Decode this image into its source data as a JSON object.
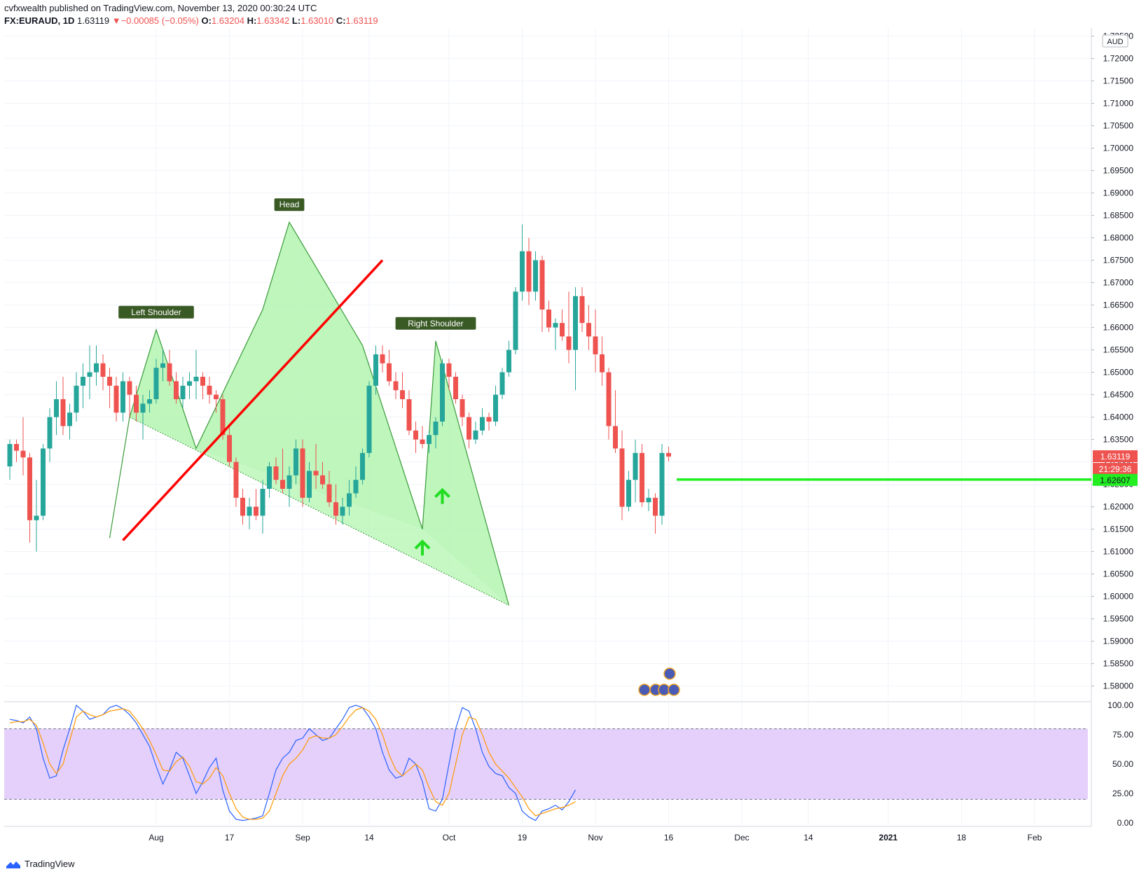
{
  "header": {
    "published_line": "cvfxwealth published on TradingView.com, November 13, 2020 00:30:24 UTC",
    "symbol": "FX:EURAUD, 1D",
    "last": "1.63119",
    "change": "−0.00085 (−0.05%)",
    "o_label": "O:",
    "o": "1.63204",
    "h_label": "H:",
    "h": "1.63342",
    "l_label": "L:",
    "l": "1.63010",
    "c_label": "C:",
    "c": "1.63119"
  },
  "footer": {
    "brand": "TradingView"
  },
  "colors": {
    "up": "#26a69a",
    "down": "#ef5350",
    "pattern_fill": "#b3f5b0",
    "neckline": "#ff0000",
    "target": "#22ee22",
    "stoch_k": "#2962ff",
    "stoch_d": "#ff9800",
    "band": "#e1c8fb"
  },
  "chart_data": [
    {
      "type": "candlestick",
      "title": "",
      "currency": "AUD",
      "x_tick_labels": [
        "Aug",
        "17",
        "Sep",
        "14",
        "Oct",
        "19",
        "Nov",
        "16",
        "Dec",
        "14",
        "2021",
        "18",
        "Feb"
      ],
      "y_tick_labels": [
        "1.72500",
        "1.72000",
        "1.71500",
        "1.71000",
        "1.70500",
        "1.70000",
        "1.69500",
        "1.69000",
        "1.68500",
        "1.68000",
        "1.67500",
        "1.67000",
        "1.66500",
        "1.66000",
        "1.65500",
        "1.65000",
        "1.64500",
        "1.64000",
        "1.63500",
        "1.63000",
        "1.62500",
        "1.62000",
        "1.61500",
        "1.61000",
        "1.60500",
        "1.60000",
        "1.59500",
        "1.59000",
        "1.58500",
        "1.58000"
      ],
      "ylim": [
        1.5765,
        1.7265
      ],
      "price_labels": {
        "last": "1.63119",
        "countdown": "21:29:36",
        "target": "1.62607"
      },
      "ohlc": [
        [
          1.629,
          1.635,
          1.626,
          1.634
        ],
        [
          1.634,
          1.635,
          1.63,
          1.6325
        ],
        [
          1.6325,
          1.64,
          1.627,
          1.631
        ],
        [
          1.631,
          1.632,
          1.612,
          1.617
        ],
        [
          1.617,
          1.626,
          1.61,
          1.618
        ],
        [
          1.618,
          1.634,
          1.617,
          1.633
        ],
        [
          1.633,
          1.642,
          1.63,
          1.64
        ],
        [
          1.64,
          1.648,
          1.636,
          1.644
        ],
        [
          1.644,
          1.649,
          1.636,
          1.638
        ],
        [
          1.638,
          1.643,
          1.635,
          1.641
        ],
        [
          1.641,
          1.65,
          1.639,
          1.647
        ],
        [
          1.647,
          1.652,
          1.642,
          1.649
        ],
        [
          1.649,
          1.656,
          1.644,
          1.65
        ],
        [
          1.65,
          1.656,
          1.647,
          1.652
        ],
        [
          1.652,
          1.654,
          1.646,
          1.649
        ],
        [
          1.649,
          1.651,
          1.642,
          1.647
        ],
        [
          1.647,
          1.649,
          1.639,
          1.641
        ],
        [
          1.641,
          1.65,
          1.639,
          1.648
        ],
        [
          1.648,
          1.649,
          1.64,
          1.645
        ],
        [
          1.645,
          1.647,
          1.639,
          1.641
        ],
        [
          1.641,
          1.645,
          1.635,
          1.643
        ],
        [
          1.643,
          1.646,
          1.641,
          1.644
        ],
        [
          1.644,
          1.653,
          1.643,
          1.651
        ],
        [
          1.651,
          1.655,
          1.648,
          1.652
        ],
        [
          1.652,
          1.655,
          1.647,
          1.648
        ],
        [
          1.648,
          1.65,
          1.643,
          1.644
        ],
        [
          1.644,
          1.649,
          1.642,
          1.647
        ],
        [
          1.647,
          1.65,
          1.644,
          1.648
        ],
        [
          1.648,
          1.655,
          1.644,
          1.649
        ],
        [
          1.649,
          1.65,
          1.644,
          1.647
        ],
        [
          1.647,
          1.649,
          1.643,
          1.645
        ],
        [
          1.645,
          1.646,
          1.641,
          1.644
        ],
        [
          1.644,
          1.645,
          1.635,
          1.636
        ],
        [
          1.636,
          1.638,
          1.629,
          1.63
        ],
        [
          1.63,
          1.631,
          1.62,
          1.622
        ],
        [
          1.622,
          1.624,
          1.616,
          1.618
        ],
        [
          1.618,
          1.622,
          1.615,
          1.62
        ],
        [
          1.62,
          1.624,
          1.617,
          1.618
        ],
        [
          1.618,
          1.626,
          1.614,
          1.624
        ],
        [
          1.624,
          1.63,
          1.622,
          1.629
        ],
        [
          1.629,
          1.631,
          1.625,
          1.626
        ],
        [
          1.626,
          1.633,
          1.623,
          1.624
        ],
        [
          1.624,
          1.629,
          1.62,
          1.627
        ],
        [
          1.627,
          1.635,
          1.625,
          1.633
        ],
        [
          1.633,
          1.635,
          1.62,
          1.622
        ],
        [
          1.622,
          1.63,
          1.621,
          1.628
        ],
        [
          1.628,
          1.634,
          1.624,
          1.627
        ],
        [
          1.627,
          1.63,
          1.624,
          1.625
        ],
        [
          1.625,
          1.628,
          1.62,
          1.621
        ],
        [
          1.621,
          1.625,
          1.616,
          1.618
        ],
        [
          1.618,
          1.622,
          1.616,
          1.62
        ],
        [
          1.62,
          1.626,
          1.618,
          1.623
        ],
        [
          1.623,
          1.629,
          1.622,
          1.626
        ],
        [
          1.626,
          1.633,
          1.625,
          1.632
        ],
        [
          1.632,
          1.648,
          1.631,
          1.647
        ],
        [
          1.647,
          1.656,
          1.645,
          1.654
        ],
        [
          1.654,
          1.656,
          1.65,
          1.652
        ],
        [
          1.652,
          1.655,
          1.647,
          1.648
        ],
        [
          1.648,
          1.65,
          1.644,
          1.646
        ],
        [
          1.646,
          1.65,
          1.642,
          1.644
        ],
        [
          1.644,
          1.646,
          1.636,
          1.637
        ],
        [
          1.637,
          1.639,
          1.632,
          1.635
        ],
        [
          1.635,
          1.638,
          1.633,
          1.634
        ],
        [
          1.634,
          1.637,
          1.632,
          1.636
        ],
        [
          1.636,
          1.64,
          1.633,
          1.639
        ],
        [
          1.639,
          1.653,
          1.638,
          1.652
        ],
        [
          1.652,
          1.653,
          1.646,
          1.649
        ],
        [
          1.649,
          1.65,
          1.643,
          1.644
        ],
        [
          1.644,
          1.645,
          1.638,
          1.64
        ],
        [
          1.64,
          1.641,
          1.633,
          1.635
        ],
        [
          1.635,
          1.639,
          1.634,
          1.637
        ],
        [
          1.637,
          1.642,
          1.636,
          1.64
        ],
        [
          1.64,
          1.641,
          1.637,
          1.639
        ],
        [
          1.639,
          1.647,
          1.638,
          1.645
        ],
        [
          1.645,
          1.651,
          1.644,
          1.65
        ],
        [
          1.65,
          1.657,
          1.649,
          1.655
        ],
        [
          1.655,
          1.669,
          1.654,
          1.668
        ],
        [
          1.668,
          1.683,
          1.666,
          1.677
        ],
        [
          1.677,
          1.68,
          1.665,
          1.668
        ],
        [
          1.668,
          1.677,
          1.666,
          1.675
        ],
        [
          1.675,
          1.676,
          1.659,
          1.664
        ],
        [
          1.664,
          1.666,
          1.659,
          1.66
        ],
        [
          1.66,
          1.662,
          1.655,
          1.661
        ],
        [
          1.661,
          1.664,
          1.657,
          1.658
        ],
        [
          1.658,
          1.668,
          1.652,
          1.655
        ],
        [
          1.655,
          1.669,
          1.646,
          1.667
        ],
        [
          1.667,
          1.669,
          1.659,
          1.661
        ],
        [
          1.661,
          1.665,
          1.655,
          1.658
        ],
        [
          1.658,
          1.664,
          1.65,
          1.654
        ],
        [
          1.654,
          1.658,
          1.647,
          1.65
        ],
        [
          1.65,
          1.651,
          1.635,
          1.638
        ],
        [
          1.638,
          1.646,
          1.632,
          1.633
        ],
        [
          1.633,
          1.637,
          1.617,
          1.62
        ],
        [
          1.62,
          1.628,
          1.619,
          1.626
        ],
        [
          1.626,
          1.635,
          1.621,
          1.632
        ],
        [
          1.632,
          1.634,
          1.62,
          1.621
        ],
        [
          1.621,
          1.624,
          1.619,
          1.622
        ],
        [
          1.622,
          1.623,
          1.614,
          1.618
        ],
        [
          1.618,
          1.634,
          1.616,
          1.632
        ],
        [
          1.632,
          1.6334,
          1.6301,
          1.6312
        ]
      ],
      "annotations": [
        {
          "label": "Left Shoulder"
        },
        {
          "label": "Head"
        },
        {
          "label": "Right Shoulder"
        }
      ],
      "pattern_vertices": [
        [
          15,
          1.613
        ],
        [
          18,
          1.64
        ],
        [
          22,
          1.6595
        ],
        [
          28,
          1.633
        ],
        [
          38,
          1.664
        ],
        [
          42,
          1.6835
        ],
        [
          53,
          1.656
        ],
        [
          62,
          1.615
        ],
        [
          64,
          1.657
        ],
        [
          75,
          1.598
        ]
      ],
      "neckline": [
        [
          17,
          1.6125
        ],
        [
          56,
          1.675
        ]
      ],
      "target_level": 1.62607
    },
    {
      "type": "line",
      "title": "",
      "indicator": "stochastic",
      "y_tick_labels": [
        "100.00",
        "75.00",
        "50.00",
        "25.00",
        "0.00"
      ],
      "ylim": [
        -3,
        103
      ],
      "band": [
        20,
        80
      ],
      "series": [
        {
          "values": [
            88,
            87,
            85,
            90,
            80,
            55,
            38,
            40,
            62,
            80,
            100,
            95,
            88,
            90,
            92,
            98,
            100,
            97,
            92,
            85,
            75,
            65,
            48,
            33,
            45,
            60,
            55,
            40,
            25,
            35,
            47,
            55,
            28,
            10,
            3,
            2,
            3,
            4,
            6,
            25,
            45,
            55,
            60,
            70,
            72,
            80,
            75,
            70,
            72,
            80,
            88,
            98,
            100,
            98,
            90,
            80,
            60,
            45,
            38,
            40,
            55,
            50,
            35,
            12,
            10,
            20,
            50,
            80,
            98,
            95,
            80,
            60,
            48,
            42,
            40,
            30,
            25,
            10,
            5,
            2,
            10,
            12,
            15,
            11,
            18,
            28
          ]
        },
        {
          "values": [
            85,
            86,
            86,
            88,
            83,
            68,
            50,
            42,
            50,
            70,
            90,
            95,
            92,
            90,
            92,
            95,
            96,
            97,
            95,
            88,
            80,
            70,
            58,
            45,
            44,
            52,
            56,
            48,
            35,
            33,
            38,
            47,
            40,
            25,
            12,
            5,
            3,
            3,
            4,
            10,
            25,
            40,
            50,
            55,
            62,
            72,
            74,
            72,
            72,
            75,
            82,
            90,
            96,
            98,
            95,
            88,
            75,
            58,
            45,
            40,
            45,
            50,
            45,
            30,
            18,
            15,
            25,
            50,
            75,
            90,
            88,
            75,
            60,
            50,
            44,
            38,
            30,
            22,
            12,
            6,
            8,
            10,
            12,
            13,
            15,
            18
          ]
        }
      ]
    }
  ]
}
